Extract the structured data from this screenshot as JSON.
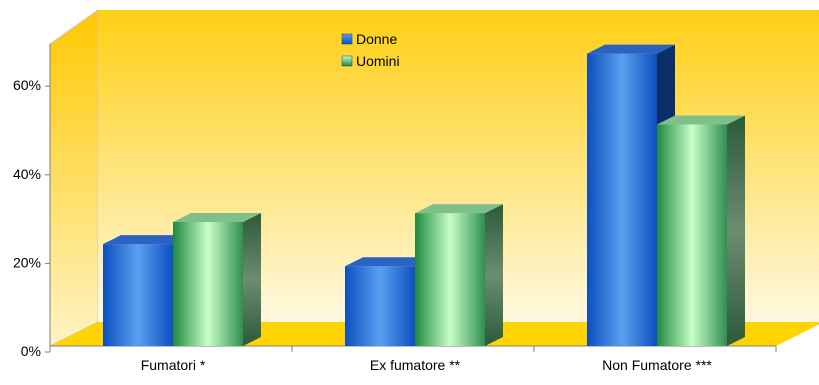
{
  "chart_data": {
    "type": "bar",
    "categories": [
      "Fumatori *",
      "Ex fumatore **",
      "Non Fumatore ***"
    ],
    "series": [
      {
        "name": "Donne",
        "values": [
          23,
          18,
          66
        ],
        "color": "#1f6fd6"
      },
      {
        "name": "Uomini",
        "values": [
          28,
          30,
          50
        ],
        "color": "#3aa35a"
      }
    ],
    "y_ticks": [
      "0%",
      "20%",
      "40%",
      "60%"
    ],
    "ylim": [
      0,
      70
    ],
    "grid": false,
    "legend_position": "top-center",
    "background_gradient": [
      "#ffcf14",
      "#fff8e1"
    ],
    "floor_color": "#ffd400",
    "title": "",
    "xlabel": "",
    "ylabel": ""
  }
}
